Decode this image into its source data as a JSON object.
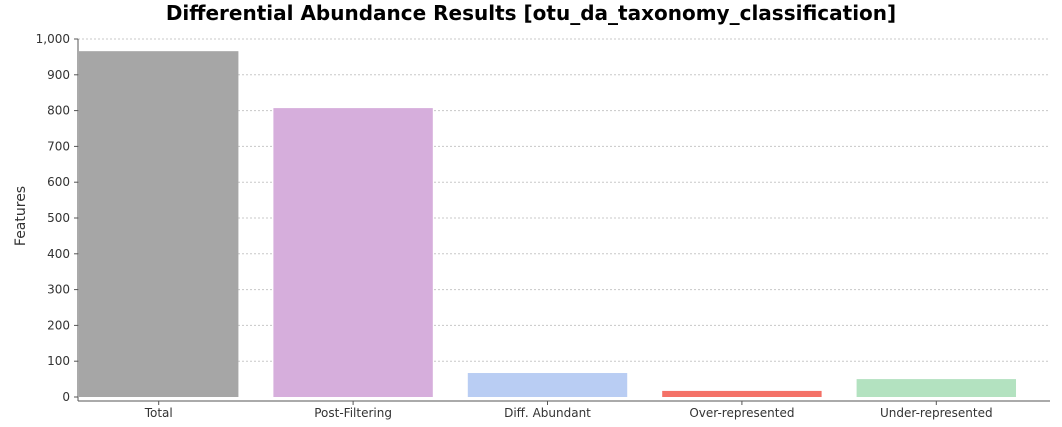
{
  "chart_data": {
    "type": "bar",
    "title": "Differential Abundance Results [otu_da_taxonomy_classification]",
    "ylabel": "Features",
    "xlabel": "",
    "categories": [
      "Total",
      "Post-Filtering",
      "Diff. Abundant",
      "Over-represented",
      "Under-represented"
    ],
    "values": [
      966,
      807,
      67,
      17,
      50
    ],
    "colors": [
      "#a6a6a6",
      "#d6aedc",
      "#b9cdf3",
      "#f47167",
      "#b3e2c0"
    ],
    "ylim": [
      0,
      1000
    ],
    "yticks": [
      0,
      100,
      200,
      300,
      400,
      500,
      600,
      700,
      800,
      900,
      1000
    ],
    "ytick_labels": [
      "0",
      "100",
      "200",
      "300",
      "400",
      "500",
      "600",
      "700",
      "800",
      "900",
      "1,000"
    ],
    "grid": true,
    "legend": "none"
  }
}
